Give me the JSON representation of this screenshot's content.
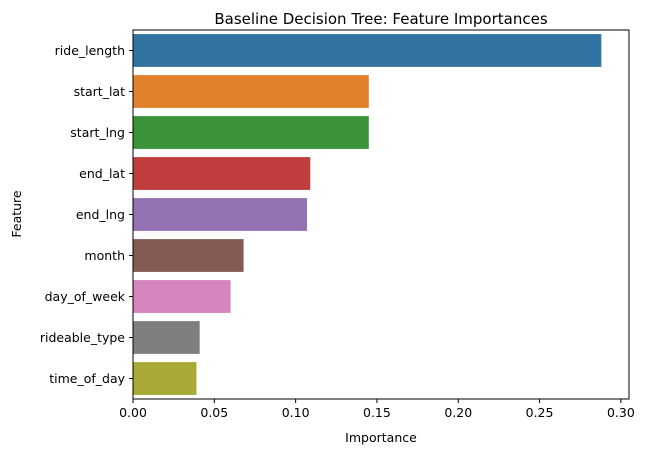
{
  "chart_data": {
    "type": "bar",
    "orientation": "horizontal",
    "title": "Baseline Decision Tree: Feature Importances",
    "xlabel": "Importance",
    "ylabel": "Feature",
    "categories": [
      "ride_length",
      "start_lat",
      "start_lng",
      "end_lat",
      "end_lng",
      "month",
      "day_of_week",
      "rideable_type",
      "time_of_day"
    ],
    "values": [
      0.288,
      0.145,
      0.145,
      0.109,
      0.107,
      0.068,
      0.06,
      0.041,
      0.039
    ],
    "colors": [
      "#3274a1",
      "#e1812c",
      "#3a923a",
      "#c03d3e",
      "#9372b2",
      "#845b53",
      "#d684bd",
      "#7f7f7f",
      "#a9aa35"
    ],
    "xlim": [
      0,
      0.305
    ],
    "xticks": [
      0.0,
      0.05,
      0.1,
      0.15,
      0.2,
      0.25,
      0.3
    ],
    "xtick_labels": [
      "0.00",
      "0.05",
      "0.10",
      "0.15",
      "0.20",
      "0.25",
      "0.30"
    ],
    "grid": false,
    "legend": false
  }
}
